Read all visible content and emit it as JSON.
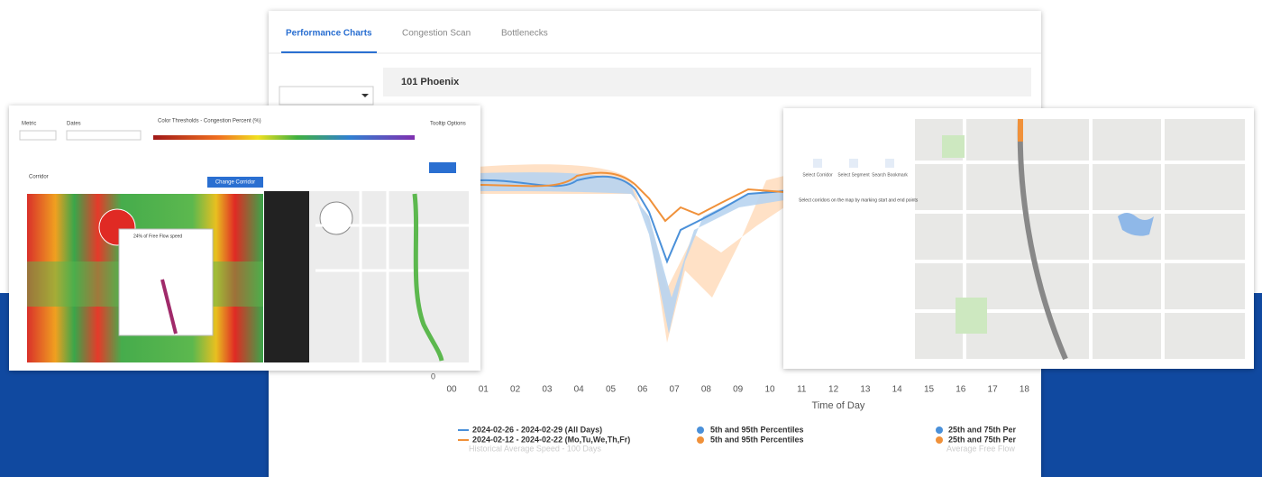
{
  "tabs": [
    "Performance Charts",
    "Congestion Scan",
    "Bottlenecks"
  ],
  "corridor_title": "101 Phoenix",
  "chart": {
    "y_tick": "0",
    "x_ticks": [
      "00",
      "01",
      "02",
      "03",
      "04",
      "05",
      "06",
      "07",
      "08",
      "09",
      "10",
      "11",
      "12",
      "13",
      "14",
      "15",
      "16",
      "17",
      "18"
    ],
    "x_label": "Time of Day",
    "legend": {
      "lines": [
        "2024-02-26 - 2024-02-29 (All Days)",
        "2024-02-12 - 2024-02-22 (Mo,Tu,We,Th,Fr)"
      ],
      "p5_95": [
        "5th and 95th Percentiles",
        "5th and 95th Percentiles"
      ],
      "p25_75": [
        "25th and 75th Per",
        "25th and 75th Per"
      ],
      "faded": [
        "Historical Average Speed - 100 Days",
        "Average Free Flow"
      ]
    }
  },
  "left_panel": {
    "labels": [
      "Metric",
      "Dates",
      "Color Thresholds - Congestion Percent (%)",
      "Tooltip Options",
      "Corridor"
    ],
    "button": "Change Corridor",
    "tooltip": "24% of Free Flow speed"
  },
  "right_panel": {
    "tools": [
      "Select Corridor",
      "Select Segment",
      "Search Bookmark"
    ],
    "hint": "Select corridors on the map by marking start and end points"
  }
}
